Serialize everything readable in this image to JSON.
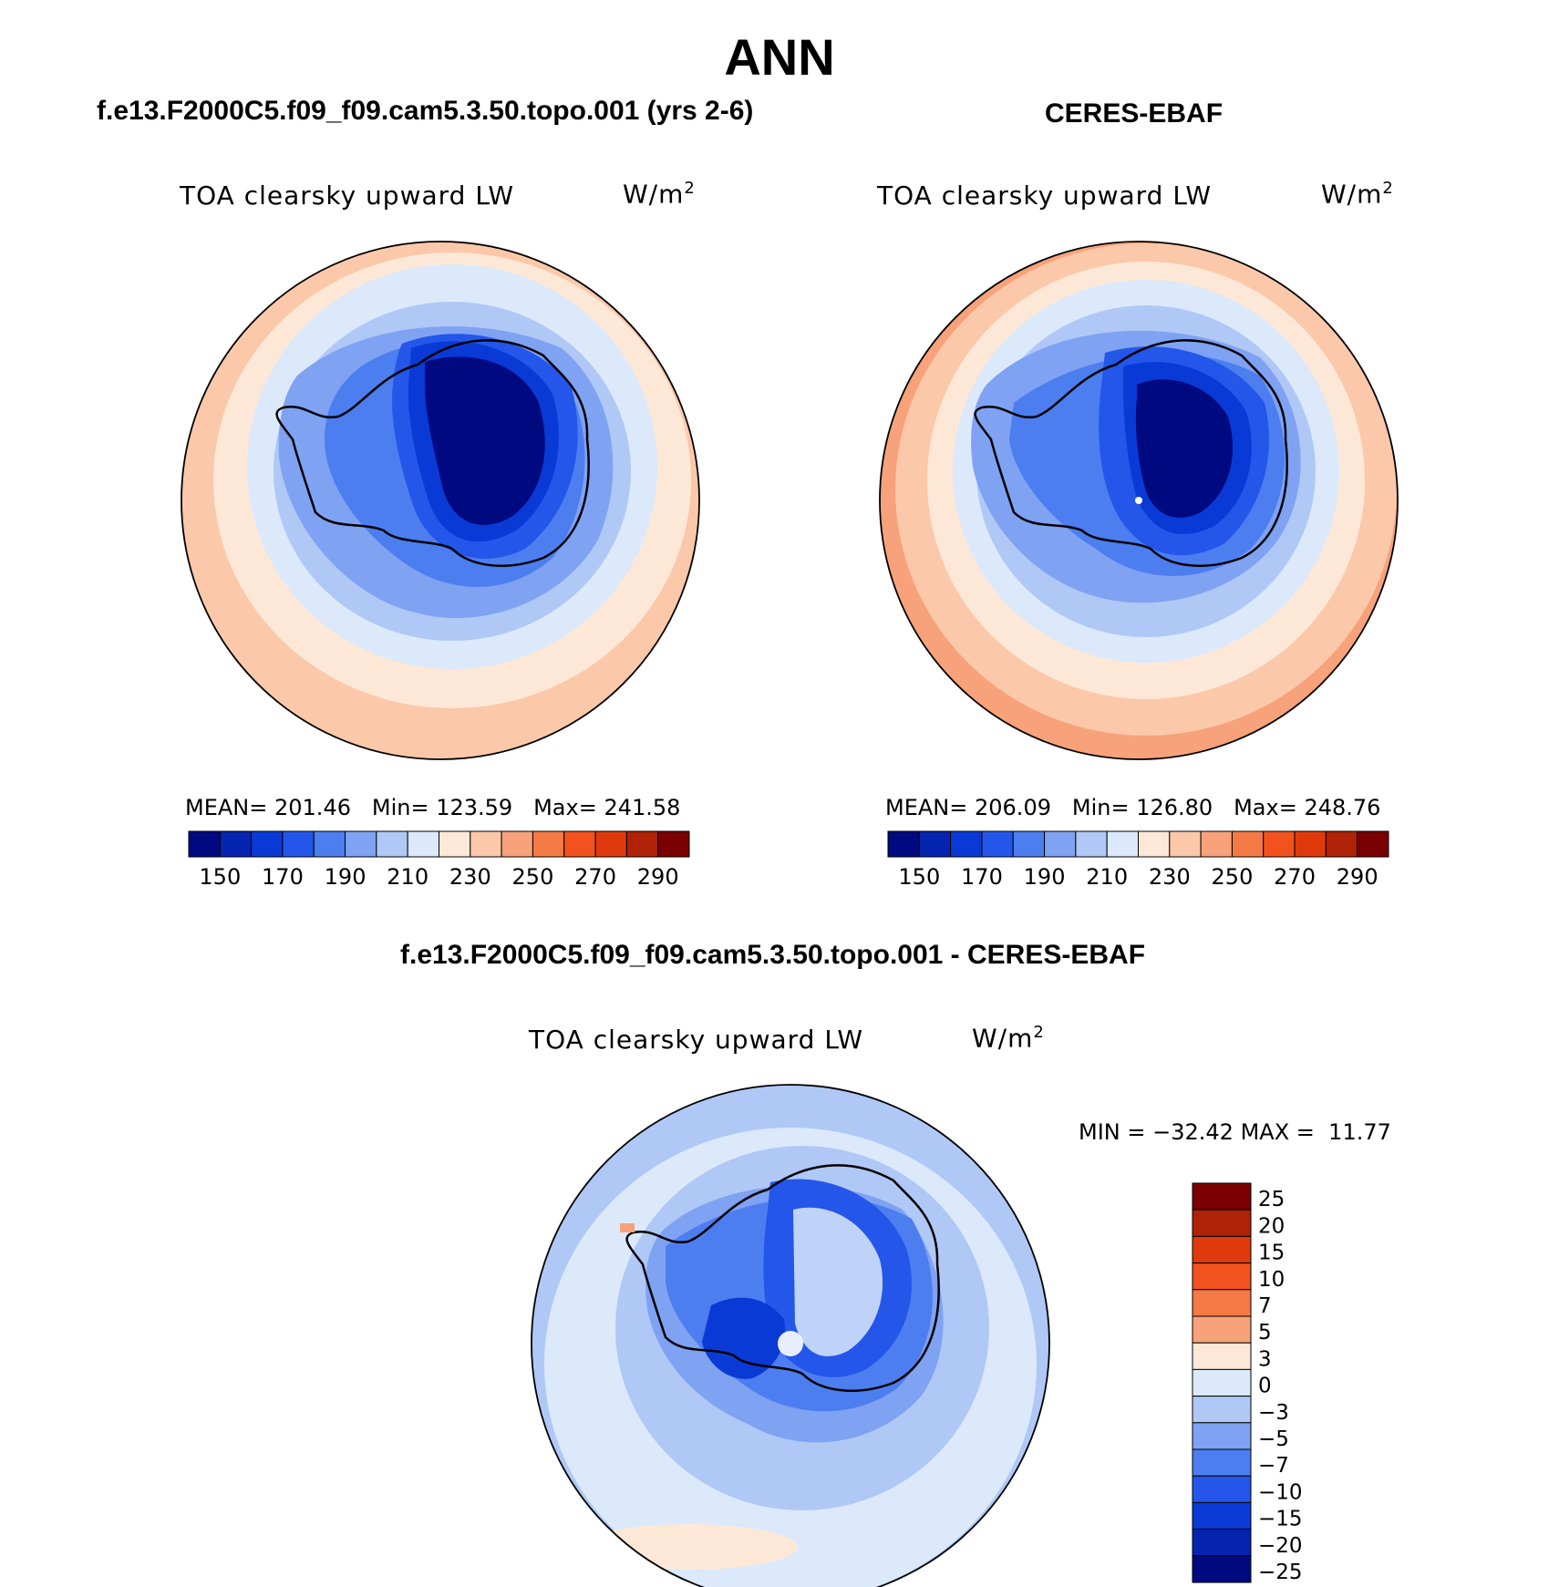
{
  "title": "ANN",
  "panels": {
    "model": {
      "case_title": "f.e13.F2000C5.f09_f09.cam5.3.50.topo.001 (yrs 2-6)",
      "variable": "TOA clearsky upward LW",
      "units_base": "W/m",
      "units_exp": "2",
      "stats": {
        "mean_label": "MEAN=",
        "mean": "201.46",
        "min_label": "Min=",
        "min": "123.59",
        "max_label": "Max=",
        "max": "241.58"
      }
    },
    "obs": {
      "case_title": "CERES-EBAF",
      "variable": "TOA clearsky upward LW",
      "units_base": "W/m",
      "units_exp": "2",
      "stats": {
        "mean_label": "MEAN=",
        "mean": "206.09",
        "min_label": "Min=",
        "min": "126.80",
        "max_label": "Max=",
        "max": "248.76"
      }
    },
    "diff": {
      "case_title": "f.e13.F2000C5.f09_f09.cam5.3.50.topo.001 - CERES-EBAF",
      "variable": "TOA clearsky upward LW",
      "units_base": "W/m",
      "units_exp": "2",
      "stats": {
        "min_label": "MIN =",
        "min": "−32.42",
        "max_label": "MAX =",
        "max": "11.77"
      }
    }
  },
  "colorbar_abs": {
    "colors": [
      "#000a80",
      "#0524b0",
      "#0a3ad6",
      "#2456ea",
      "#4c7ef0",
      "#7fa2f2",
      "#b0c8f6",
      "#dbe9fb",
      "#fde8d8",
      "#fbc8aa",
      "#f7a27a",
      "#f47a45",
      "#f1521e",
      "#df3a0c",
      "#b02208",
      "#7a0004"
    ],
    "labels": [
      "150",
      "170",
      "190",
      "210",
      "230",
      "250",
      "270",
      "290"
    ]
  },
  "colorbar_diff": {
    "colors": [
      "#7a0004",
      "#b02208",
      "#df3a0c",
      "#f1521e",
      "#f47a45",
      "#f7a27a",
      "#fde8d8",
      "#dbe9fb",
      "#b0c8f6",
      "#7fa2f2",
      "#4c7ef0",
      "#2456ea",
      "#0a3ad6",
      "#0524b0",
      "#000a80"
    ],
    "labels": [
      "25",
      "20",
      "15",
      "10",
      "7",
      "5",
      "3",
      "0",
      "−3",
      "−5",
      "−7",
      "−10",
      "−15",
      "−20",
      "−25"
    ]
  }
}
